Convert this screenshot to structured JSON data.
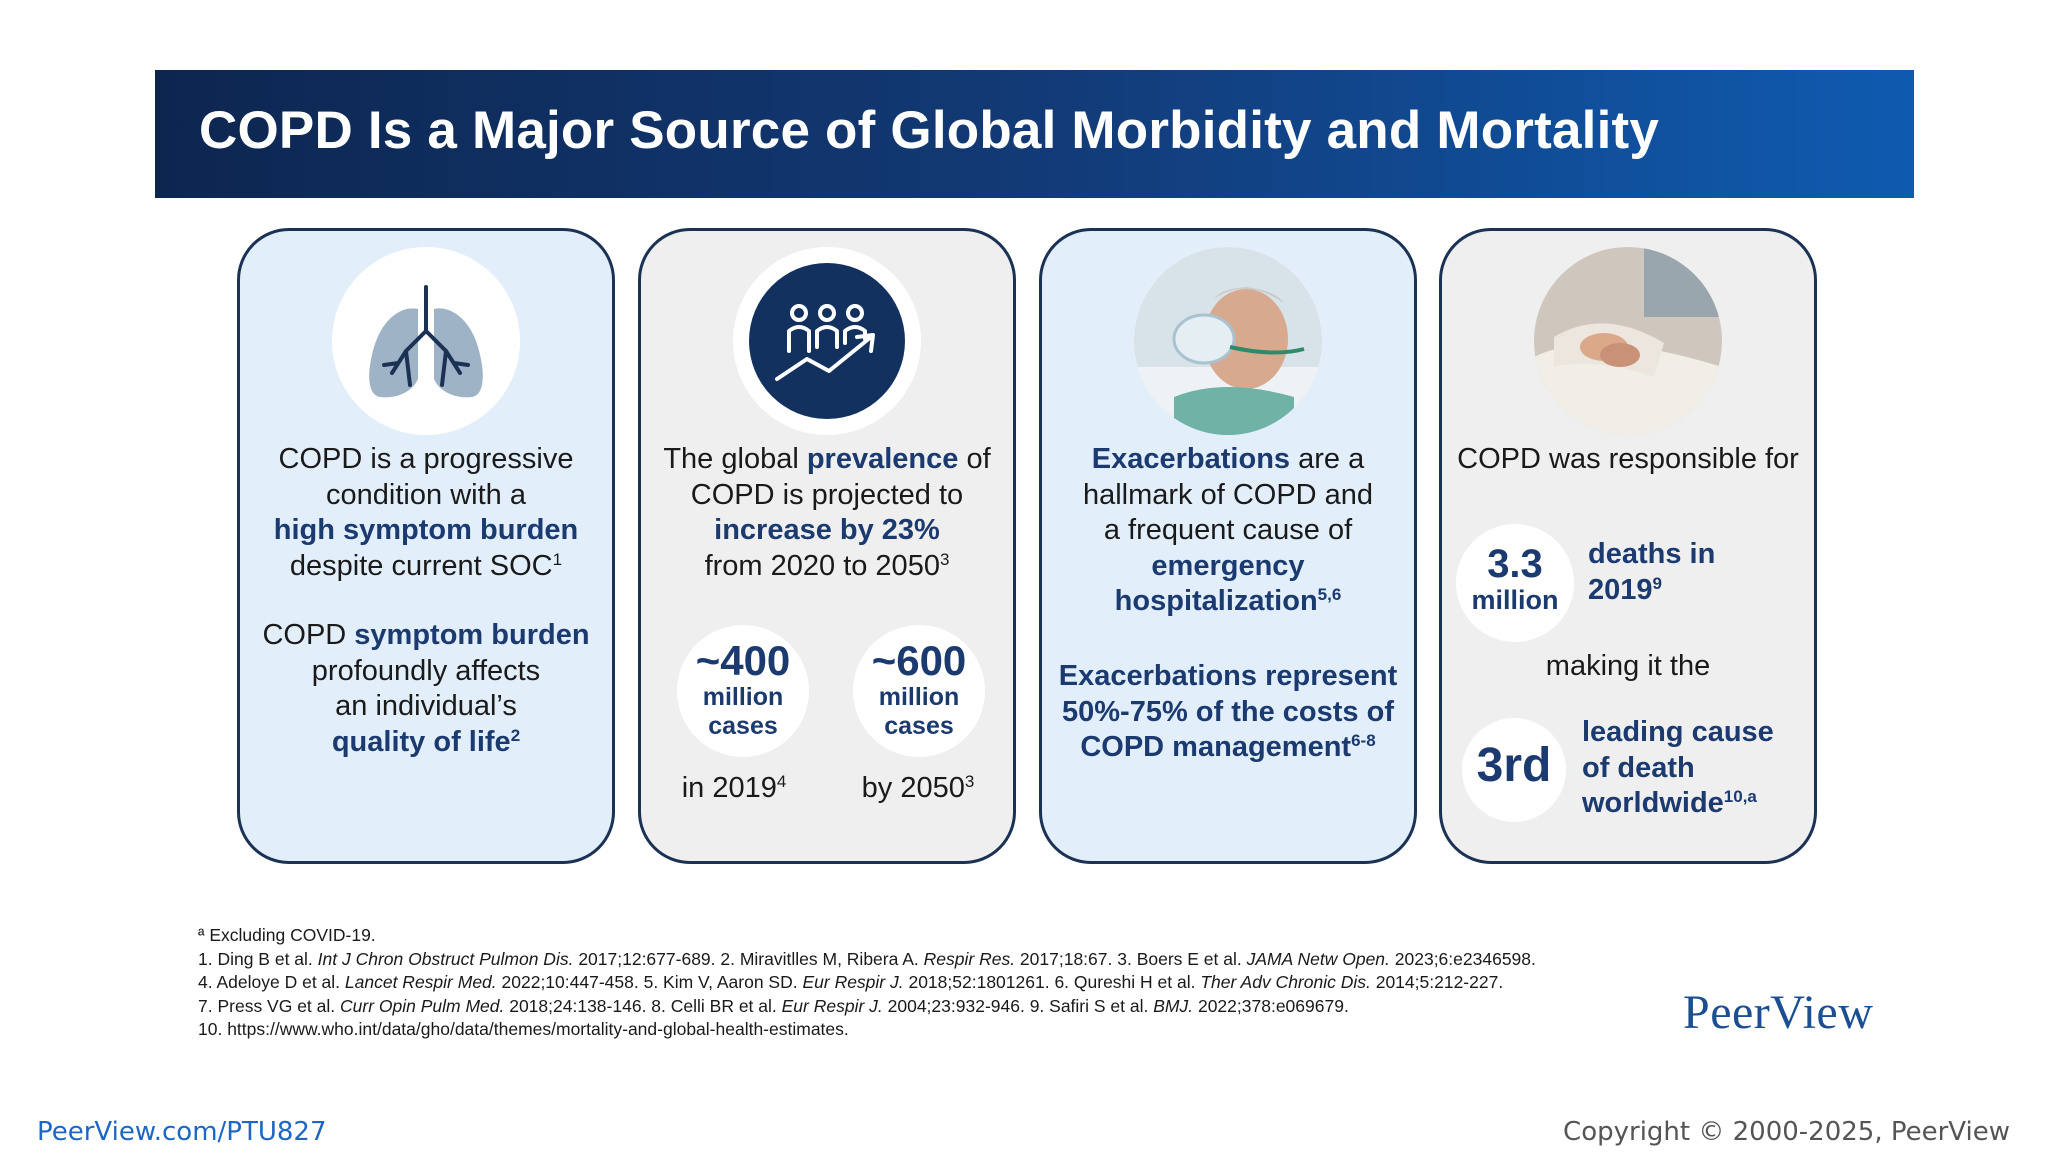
{
  "header": {
    "title": "COPD Is a Major Source of Global Morbidity and Mortality"
  },
  "cards": {
    "c1": {
      "icon": "lungs-icon",
      "p1_pre": "COPD is a progressive",
      "p1_l2": "condition with a",
      "p1_hl": "high symptom burden",
      "p1_l4": "despite current SOC",
      "p1_ref": "1",
      "p2_pre": "COPD ",
      "p2_hl": "symptom burden",
      "p2_l2": "profoundly affects",
      "p2_l3": "an individual’s",
      "p2_hl2": "quality of life",
      "p2_ref": "2"
    },
    "c2": {
      "icon": "population-growth-icon",
      "l1_pre": "The global ",
      "l1_hl": "prevalence",
      "l1_post": " of",
      "l2": "COPD is projected to",
      "l3_hl": "increase by 23%",
      "l4": "from 2020 to 2050",
      "l4_ref": "3",
      "stat1_big": "~400",
      "stat1_l1": "million",
      "stat1_l2": "cases",
      "stat1_year": "in 2019",
      "stat1_ref": "4",
      "stat2_big": "~600",
      "stat2_l1": "million",
      "stat2_l2": "cases",
      "stat2_year": "by 2050",
      "stat2_ref": "3"
    },
    "c3": {
      "icon": "patient-oxygen-mask-photo",
      "l1_hl": "Exacerbations",
      "l1_post": " are a",
      "l2": "hallmark of COPD and",
      "l3": "a frequent cause of",
      "l4_hl": "emergency",
      "l5_hl": "hospitalization",
      "l5_ref": "5,6",
      "p2_l1_hl": "Exacerbations",
      "p2_l1_post": " represent",
      "p2_l2_hl": "50%-75%",
      "p2_l2_mid": " of the ",
      "p2_l2_hl2": "costs of",
      "p2_l3_hl": "COPD management",
      "p2_l3_ref": "6-8"
    },
    "c4": {
      "icon": "holding-hands-photo",
      "l1": "COPD was responsible for",
      "stat_big": "3.3",
      "stat_small": "million",
      "stat_label_l1": "deaths in",
      "stat_label_l2": "2019",
      "stat_label_ref": "9",
      "mid": "making it the",
      "rank": "3rd",
      "rank_l1": "leading cause",
      "rank_l2": "of death",
      "rank_l3": "worldwide",
      "rank_ref": "10,a"
    }
  },
  "footnotes": {
    "a": "ª Excluding COVID-19.",
    "r1": [
      [
        "1. Ding B et al. ",
        false
      ],
      [
        "Int J Chron Obstruct Pulmon Dis.",
        true
      ],
      [
        " 2017;12:677-689. 2. Miravitlles M, Ribera A. ",
        false
      ],
      [
        "Respir Res.",
        true
      ],
      [
        " 2017;18:67. 3. Boers E et al. ",
        false
      ],
      [
        "JAMA Netw Open.",
        true
      ],
      [
        " 2023;6:e2346598.",
        false
      ]
    ],
    "r2": [
      [
        "4. Adeloye D et al. ",
        false
      ],
      [
        "Lancet Respir Med.",
        true
      ],
      [
        " 2022;10:447-458. 5. Kim V, Aaron SD. ",
        false
      ],
      [
        "Eur Respir J.",
        true
      ],
      [
        " 2018;52:1801261. 6. Qureshi H et al. ",
        false
      ],
      [
        "Ther Adv Chronic Dis.",
        true
      ],
      [
        " 2014;5:212-227.",
        false
      ]
    ],
    "r3": [
      [
        "7. Press VG et al. ",
        false
      ],
      [
        "Curr Opin Pulm Med.",
        true
      ],
      [
        " 2018;24:138-146. 8. Celli BR et al. ",
        false
      ],
      [
        "Eur Respir J.",
        true
      ],
      [
        " 2004;23:932-946. 9. Safiri S et al. ",
        false
      ],
      [
        "BMJ.",
        true
      ],
      [
        " 2022;378:e069679.",
        false
      ]
    ],
    "r4": [
      [
        "10. https://www.who.int/data/gho/data/themes/mortality-and-global-health-estimates.",
        false
      ]
    ]
  },
  "branding": {
    "logo": "PeerView",
    "url": "PeerView.com/PTU827",
    "copyright": "Copyright © 2000-2025, PeerView"
  },
  "colors": {
    "navy": "#1b3a6f",
    "banner_start": "#0d2650",
    "banner_end": "#0f5bb0",
    "card_blue": "#e2effb",
    "card_grey": "#efefef"
  }
}
